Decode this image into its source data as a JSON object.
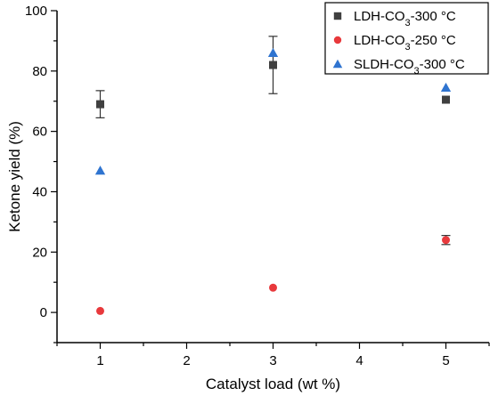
{
  "chart_data": {
    "type": "scatter",
    "xlabel": "Catalyst load (wt %)",
    "ylabel": "Ketone yield (%)",
    "xlim": [
      0.5,
      5.5
    ],
    "ylim": [
      -10,
      100
    ],
    "xticks": [
      1,
      2,
      3,
      4,
      5
    ],
    "yticks": [
      0,
      20,
      40,
      60,
      80,
      100
    ],
    "grid": false,
    "legend_position": "top-right",
    "series": [
      {
        "name_parts": [
          "LDH-CO",
          "3",
          "-300 °C"
        ],
        "marker": "square",
        "color": "#404040",
        "points": [
          {
            "x": 1,
            "y": 69,
            "err": 4.5
          },
          {
            "x": 3,
            "y": 82,
            "err": 9.5
          },
          {
            "x": 5,
            "y": 70.5,
            "err": 0
          }
        ]
      },
      {
        "name_parts": [
          "LDH-CO",
          "3",
          "-250 °C"
        ],
        "marker": "circle",
        "color": "#e8393c",
        "points": [
          {
            "x": 1,
            "y": 0.5,
            "err": 0
          },
          {
            "x": 3,
            "y": 8.2,
            "err": 0
          },
          {
            "x": 5,
            "y": 24,
            "err": 1.5
          }
        ]
      },
      {
        "name_parts": [
          "SLDH-CO",
          "3",
          "-300 °C"
        ],
        "marker": "triangle",
        "color": "#2f74d0",
        "points": [
          {
            "x": 1,
            "y": 47,
            "err": 0
          },
          {
            "x": 3,
            "y": 86,
            "err": 0
          },
          {
            "x": 5,
            "y": 74.5,
            "err": 0
          }
        ]
      }
    ]
  }
}
